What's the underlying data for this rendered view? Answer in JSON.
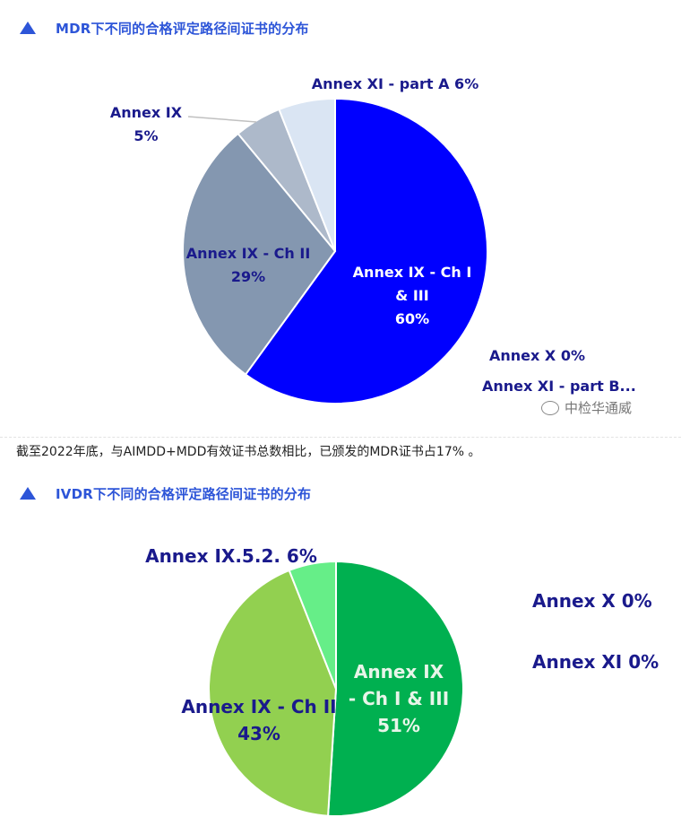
{
  "headings": {
    "mdr": "MDR下不同的合格评定路径间证书的分布",
    "ivdr": "IVDR下不同的合格评定路径间证书的分布"
  },
  "paragraph": "截至2022年底，与AIMDD+MDD有效证书总数相比，已颁发的MDR证书占17% 。",
  "watermark": "中检华通威",
  "colors": {
    "accent": "#2d55d8",
    "label": "#1a1a8c"
  },
  "chart_data": [
    {
      "type": "pie",
      "slices": [
        {
          "lines": [
            "Annex IX - Ch I",
            "& III",
            "60%"
          ],
          "value": 60,
          "color": "#0000ff",
          "label_color": "#ffffff"
        },
        {
          "lines": [
            "Annex IX - Ch II",
            "29%"
          ],
          "value": 29,
          "color": "#8497b0",
          "label_color": "#1a1a8c"
        },
        {
          "lines": [
            "Annex IX",
            "5%"
          ],
          "value": 5,
          "color": "#adb9ca",
          "label_color": "#1a1a8c"
        },
        {
          "lines": [
            "Annex XI - part A 6%"
          ],
          "value": 6,
          "color": "#dae5f3",
          "label_color": "#1a1a8c"
        }
      ],
      "extra_labels": [
        "Annex X 0%",
        "Annex XI - part B..."
      ]
    },
    {
      "type": "pie",
      "slices": [
        {
          "lines": [
            "Annex IX",
            "- Ch I & III",
            "51%"
          ],
          "value": 51,
          "color": "#00b050",
          "label_color": "#e8f5e9"
        },
        {
          "lines": [
            "Annex IX - Ch II",
            "43%"
          ],
          "value": 43,
          "color": "#92d050",
          "label_color": "#1a1a8c"
        },
        {
          "lines": [
            "Annex IX.5.2. 6%"
          ],
          "value": 6,
          "color": "#66ee88",
          "label_color": "#1a1a8c"
        }
      ],
      "extra_labels": [
        "Annex X  0%",
        "Annex XI  0%"
      ]
    }
  ]
}
